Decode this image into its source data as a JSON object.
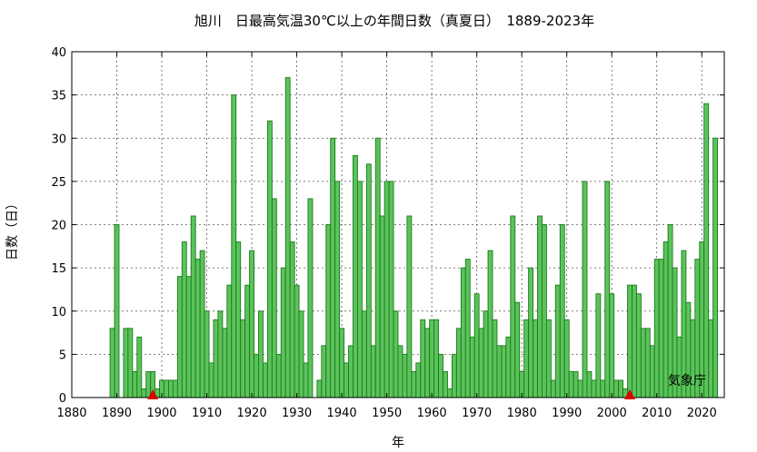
{
  "chart_data": {
    "type": "bar",
    "title": "旭川　日最高気温30℃以上の年間日数（真夏日）　1889-2023年",
    "xlabel": "年",
    "ylabel": "日数（日）",
    "xlim": [
      1880,
      2025
    ],
    "ylim": [
      0,
      40
    ],
    "xticks": [
      1880,
      1890,
      1900,
      1910,
      1920,
      1930,
      1940,
      1950,
      1960,
      1970,
      1980,
      1990,
      2000,
      2010,
      2020
    ],
    "yticks": [
      0,
      5,
      10,
      15,
      20,
      25,
      30,
      35,
      40
    ],
    "grid": true,
    "bar_color": "#5cc35c",
    "bar_edge_color": "#1a7a1a",
    "marker_color": "#dd0000",
    "markers": [
      1898,
      2004
    ],
    "credit": "気象庁",
    "x": [
      1889,
      1890,
      1891,
      1892,
      1893,
      1894,
      1895,
      1896,
      1897,
      1898,
      1899,
      1900,
      1901,
      1902,
      1903,
      1904,
      1905,
      1906,
      1907,
      1908,
      1909,
      1910,
      1911,
      1912,
      1913,
      1914,
      1915,
      1916,
      1917,
      1918,
      1919,
      1920,
      1921,
      1922,
      1923,
      1924,
      1925,
      1926,
      1927,
      1928,
      1929,
      1930,
      1931,
      1932,
      1933,
      1934,
      1935,
      1936,
      1937,
      1938,
      1939,
      1940,
      1941,
      1942,
      1943,
      1944,
      1945,
      1946,
      1947,
      1948,
      1949,
      1950,
      1951,
      1952,
      1953,
      1954,
      1955,
      1956,
      1957,
      1958,
      1959,
      1960,
      1961,
      1962,
      1963,
      1964,
      1965,
      1966,
      1967,
      1968,
      1969,
      1970,
      1971,
      1972,
      1973,
      1974,
      1975,
      1976,
      1977,
      1978,
      1979,
      1980,
      1981,
      1982,
      1983,
      1984,
      1985,
      1986,
      1987,
      1988,
      1989,
      1990,
      1991,
      1992,
      1993,
      1994,
      1995,
      1996,
      1997,
      1998,
      1999,
      2000,
      2001,
      2002,
      2003,
      2004,
      2005,
      2006,
      2007,
      2008,
      2009,
      2010,
      2011,
      2012,
      2013,
      2014,
      2015,
      2016,
      2017,
      2018,
      2019,
      2020,
      2021,
      2022,
      2023
    ],
    "values": [
      8,
      20,
      0,
      8,
      8,
      3,
      7,
      1,
      3,
      3,
      1,
      2,
      2,
      2,
      2,
      14,
      18,
      14,
      21,
      16,
      17,
      10,
      4,
      9,
      10,
      8,
      13,
      35,
      18,
      9,
      13,
      17,
      5,
      10,
      4,
      32,
      23,
      5,
      15,
      37,
      18,
      13,
      10,
      4,
      23,
      0,
      2,
      6,
      20,
      30,
      25,
      8,
      4,
      6,
      28,
      25,
      10,
      27,
      6,
      30,
      21,
      25,
      25,
      10,
      6,
      5,
      21,
      3,
      4,
      9,
      8,
      9,
      9,
      5,
      3,
      1,
      5,
      8,
      15,
      16,
      7,
      12,
      8,
      10,
      17,
      9,
      6,
      6,
      7,
      21,
      11,
      3,
      9,
      15,
      9,
      21,
      20,
      9,
      2,
      13,
      20,
      9,
      3,
      3,
      2,
      25,
      3,
      2,
      12,
      2,
      25,
      12,
      2,
      2,
      1,
      13,
      13,
      12,
      8,
      8,
      6,
      16,
      16,
      18,
      20,
      15,
      7,
      17,
      11,
      9,
      16,
      18,
      34,
      9,
      30
    ]
  }
}
